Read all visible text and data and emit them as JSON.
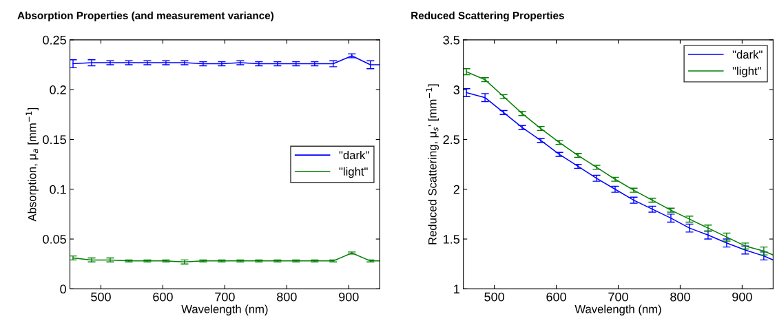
{
  "chart_data": [
    {
      "type": "line",
      "title": "Absorption Properties (and measurement variance)",
      "xlabel": "Wavelength (nm)",
      "ylabel": "Absorption, μ$_{a}$ [mm$^{−1}$]",
      "x": [
        455,
        485,
        515,
        545,
        575,
        605,
        635,
        665,
        695,
        725,
        755,
        785,
        815,
        845,
        875,
        905,
        935,
        950
      ],
      "series": [
        {
          "name": "\"dark\"",
          "color": "#0000ff",
          "values": [
            0.226,
            0.227,
            0.227,
            0.227,
            0.227,
            0.227,
            0.227,
            0.226,
            0.226,
            0.227,
            0.226,
            0.226,
            0.226,
            0.226,
            0.226,
            0.234,
            0.225,
            0.225
          ],
          "errors": [
            0.004,
            0.003,
            0.002,
            0.002,
            0.002,
            0.002,
            0.002,
            0.002,
            0.002,
            0.002,
            0.002,
            0.002,
            0.002,
            0.002,
            0.003,
            0.002,
            0.004,
            null
          ]
        },
        {
          "name": "\"light\"",
          "color": "#008000",
          "values": [
            0.031,
            0.029,
            0.029,
            0.028,
            0.028,
            0.028,
            0.027,
            0.028,
            0.028,
            0.028,
            0.028,
            0.028,
            0.028,
            0.028,
            0.028,
            0.036,
            0.028,
            0.028
          ],
          "errors": [
            0.002,
            0.002,
            0.002,
            0.001,
            0.001,
            0.001,
            0.002,
            0.001,
            0.001,
            0.001,
            0.001,
            0.001,
            0.001,
            0.001,
            0.001,
            0.001,
            0.001,
            null
          ]
        }
      ],
      "xlim": [
        450,
        950
      ],
      "xticks": [
        500,
        600,
        700,
        800,
        900
      ],
      "ylim": [
        0,
        0.25
      ],
      "yticks": [
        0,
        0.05,
        0.1,
        0.15,
        0.2,
        0.25
      ],
      "legend": "right",
      "grid": false
    },
    {
      "type": "line",
      "title": "Reduced Scattering Properties",
      "xlabel": "Wavelength (nm)",
      "ylabel": "Reduced Scattering, μ$_{s}$' [mm$^{−1}$]",
      "x": [
        455,
        485,
        515,
        545,
        575,
        605,
        635,
        665,
        695,
        725,
        755,
        785,
        815,
        845,
        875,
        905,
        935,
        950
      ],
      "series": [
        {
          "name": "\"dark\"",
          "color": "#0000ff",
          "values": [
            2.97,
            2.92,
            2.77,
            2.62,
            2.49,
            2.35,
            2.23,
            2.11,
            2.0,
            1.89,
            1.8,
            1.71,
            1.61,
            1.54,
            1.46,
            1.39,
            1.33,
            1.29
          ],
          "errors": [
            0.04,
            0.04,
            0.02,
            0.02,
            0.02,
            0.02,
            0.02,
            0.03,
            0.03,
            0.03,
            0.03,
            0.04,
            0.04,
            0.04,
            0.04,
            0.04,
            0.04,
            null
          ]
        },
        {
          "name": "\"light\"",
          "color": "#008000",
          "values": [
            3.18,
            3.1,
            2.93,
            2.76,
            2.61,
            2.47,
            2.34,
            2.22,
            2.1,
            1.99,
            1.89,
            1.79,
            1.7,
            1.61,
            1.52,
            1.43,
            1.38,
            1.34
          ],
          "errors": [
            0.03,
            0.02,
            0.02,
            0.02,
            0.02,
            0.02,
            0.02,
            0.02,
            0.02,
            0.02,
            0.02,
            0.02,
            0.03,
            0.03,
            0.04,
            0.03,
            0.04,
            null
          ]
        }
      ],
      "xlim": [
        450,
        950
      ],
      "xticks": [
        500,
        600,
        700,
        800,
        900
      ],
      "ylim": [
        1,
        3.5
      ],
      "yticks": [
        1,
        1.5,
        2,
        2.5,
        3,
        3.5
      ],
      "legend": "top right",
      "grid": false
    }
  ]
}
